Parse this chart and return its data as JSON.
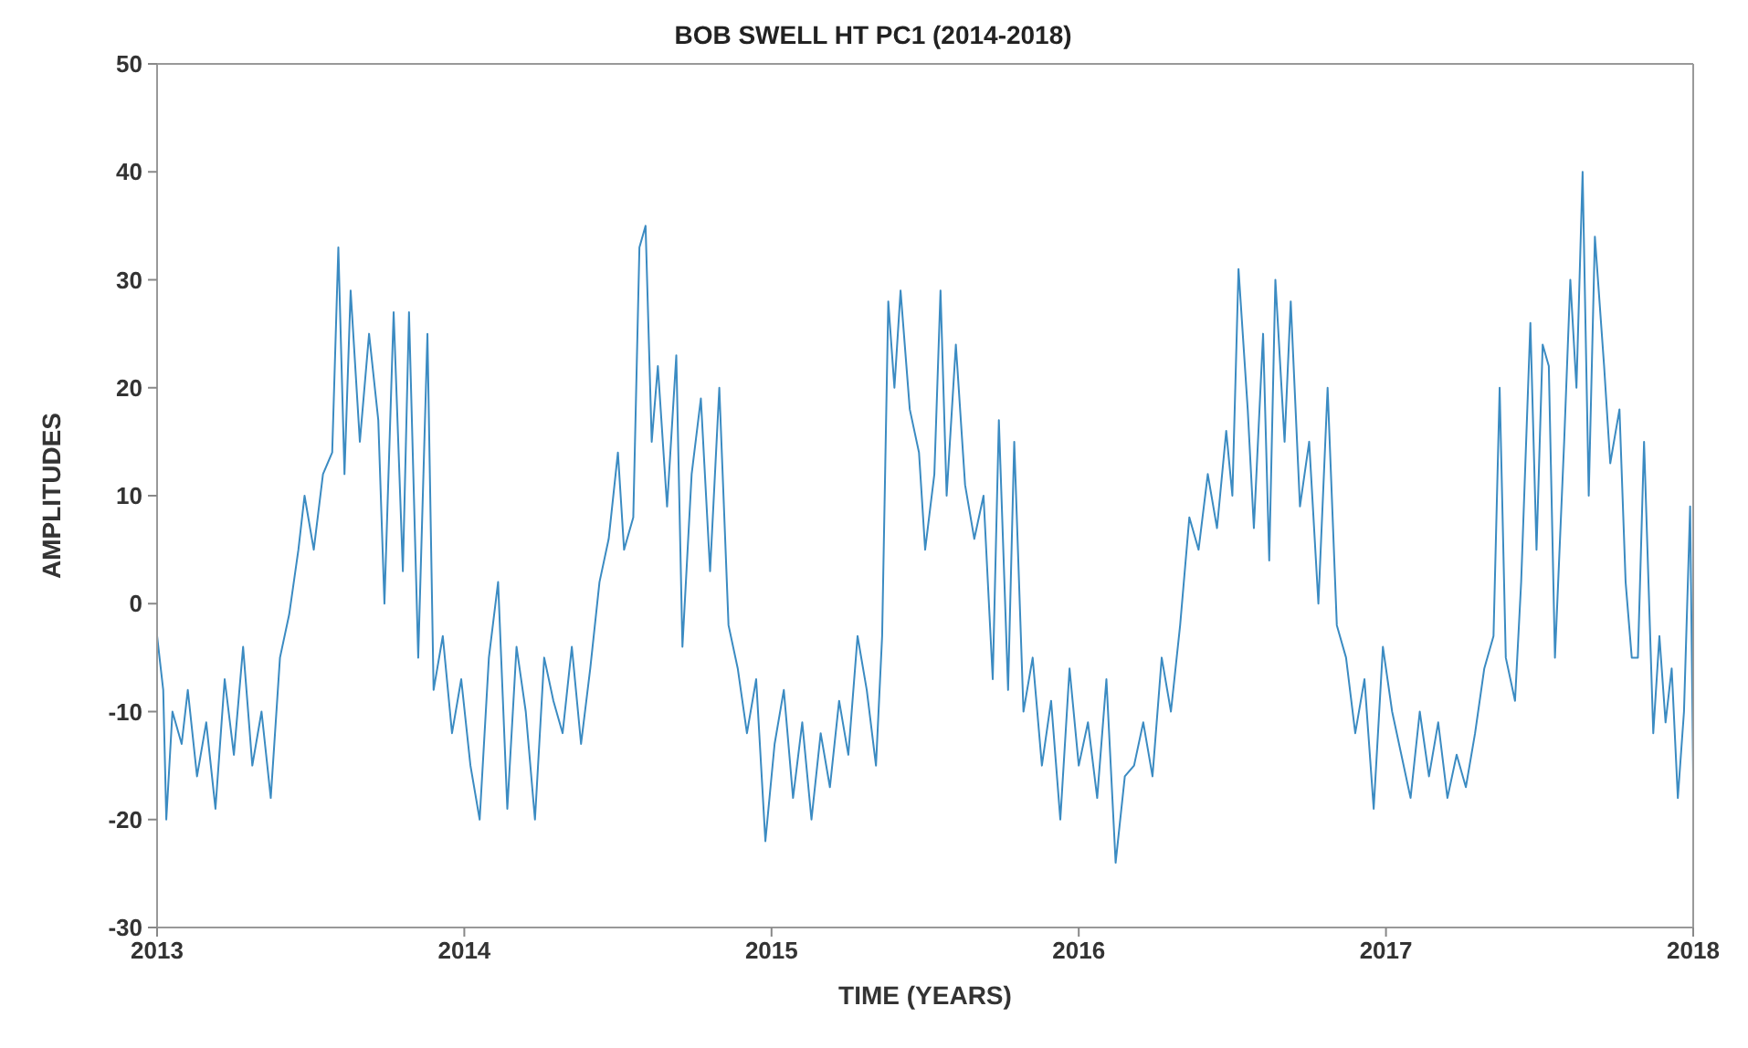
{
  "chart_data": {
    "type": "line",
    "title": "BOB SWELL HT PC1 (2014-2018)",
    "xlabel": "TIME (YEARS)",
    "ylabel": "AMPLITUDES",
    "x": [
      2013.0,
      2013.02,
      2013.03,
      2013.05,
      2013.08,
      2013.1,
      2013.13,
      2013.16,
      2013.19,
      2013.22,
      2013.25,
      2013.28,
      2013.31,
      2013.34,
      2013.37,
      2013.4,
      2013.43,
      2013.46,
      2013.48,
      2013.51,
      2013.54,
      2013.57,
      2013.59,
      2013.61,
      2013.63,
      2013.66,
      2013.69,
      2013.72,
      2013.74,
      2013.77,
      2013.8,
      2013.82,
      2013.85,
      2013.88,
      2013.9,
      2013.93,
      2013.96,
      2013.99,
      2014.02,
      2014.05,
      2014.08,
      2014.11,
      2014.14,
      2014.17,
      2014.2,
      2014.23,
      2014.26,
      2014.29,
      2014.32,
      2014.35,
      2014.38,
      2014.41,
      2014.44,
      2014.47,
      2014.5,
      2014.52,
      2014.55,
      2014.57,
      2014.59,
      2014.61,
      2014.63,
      2014.66,
      2014.69,
      2014.71,
      2014.74,
      2014.77,
      2014.8,
      2014.83,
      2014.86,
      2014.89,
      2014.92,
      2014.95,
      2014.98,
      2015.01,
      2015.04,
      2015.07,
      2015.1,
      2015.13,
      2015.16,
      2015.19,
      2015.22,
      2015.25,
      2015.28,
      2015.31,
      2015.34,
      2015.36,
      2015.38,
      2015.4,
      2015.42,
      2015.45,
      2015.48,
      2015.5,
      2015.53,
      2015.55,
      2015.57,
      2015.6,
      2015.63,
      2015.66,
      2015.69,
      2015.72,
      2015.74,
      2015.77,
      2015.79,
      2015.82,
      2015.85,
      2015.88,
      2015.91,
      2015.94,
      2015.97,
      2016.0,
      2016.03,
      2016.06,
      2016.09,
      2016.12,
      2016.15,
      2016.18,
      2016.21,
      2016.24,
      2016.27,
      2016.3,
      2016.33,
      2016.36,
      2016.39,
      2016.42,
      2016.45,
      2016.48,
      2016.5,
      2016.52,
      2016.55,
      2016.57,
      2016.6,
      2016.62,
      2016.64,
      2016.67,
      2016.69,
      2016.72,
      2016.75,
      2016.78,
      2016.81,
      2016.84,
      2016.87,
      2016.9,
      2016.93,
      2016.96,
      2016.99,
      2017.02,
      2017.05,
      2017.08,
      2017.11,
      2017.14,
      2017.17,
      2017.2,
      2017.23,
      2017.26,
      2017.29,
      2017.32,
      2017.35,
      2017.37,
      2017.39,
      2017.42,
      2017.44,
      2017.47,
      2017.49,
      2017.51,
      2017.53,
      2017.55,
      2017.58,
      2017.6,
      2017.62,
      2017.64,
      2017.66,
      2017.68,
      2017.71,
      2017.73,
      2017.76,
      2017.78,
      2017.8,
      2017.82,
      2017.84,
      2017.87,
      2017.89,
      2017.91,
      2017.93,
      2017.95,
      2017.97,
      2017.99,
      2018.0
    ],
    "series": [
      {
        "color": "#3b8bc2",
        "values": [
          -3,
          -8,
          -20,
          -10,
          -13,
          -8,
          -16,
          -11,
          -19,
          -7,
          -14,
          -4,
          -15,
          -10,
          -18,
          -5,
          -1,
          5,
          10,
          5,
          12,
          14,
          33,
          12,
          29,
          15,
          25,
          17,
          0,
          27,
          3,
          27,
          -5,
          25,
          -8,
          -3,
          -12,
          -7,
          -15,
          -20,
          -5,
          2,
          -19,
          -4,
          -10,
          -20,
          -5,
          -9,
          -12,
          -4,
          -13,
          -6,
          2,
          6,
          14,
          5,
          8,
          33,
          35,
          15,
          22,
          9,
          23,
          -4,
          12,
          19,
          3,
          20,
          -2,
          -6,
          -12,
          -7,
          -22,
          -13,
          -8,
          -18,
          -11,
          -20,
          -12,
          -17,
          -9,
          -14,
          -3,
          -8,
          -15,
          -3,
          28,
          20,
          29,
          18,
          14,
          5,
          12,
          29,
          10,
          24,
          11,
          6,
          10,
          -7,
          17,
          -8,
          15,
          -10,
          -5,
          -15,
          -9,
          -20,
          -6,
          -15,
          -11,
          -18,
          -7,
          -24,
          -16,
          -15,
          -11,
          -16,
          -5,
          -10,
          -2,
          8,
          5,
          12,
          7,
          16,
          10,
          31,
          18,
          7,
          25,
          4,
          30,
          15,
          28,
          9,
          15,
          0,
          20,
          -2,
          -5,
          -12,
          -7,
          -19,
          -4,
          -10,
          -14,
          -18,
          -10,
          -16,
          -11,
          -18,
          -14,
          -17,
          -12,
          -6,
          -3,
          20,
          -5,
          -9,
          2,
          26,
          5,
          24,
          22,
          -5,
          15,
          30,
          20,
          40,
          10,
          34,
          22,
          13,
          18,
          2,
          -5,
          -5,
          15,
          -12,
          -3,
          -11,
          -6,
          -18,
          -10,
          9,
          -16
        ]
      }
    ],
    "xlim": [
      2013,
      2018
    ],
    "xticks": [
      2013,
      2014,
      2015,
      2016,
      2017,
      2018
    ],
    "ylim": [
      -30,
      50
    ],
    "yticks": [
      -30,
      -20,
      -10,
      0,
      10,
      20,
      30,
      40,
      50
    ],
    "grid": false,
    "legend": false,
    "marker": "none",
    "line_style": "solid"
  }
}
